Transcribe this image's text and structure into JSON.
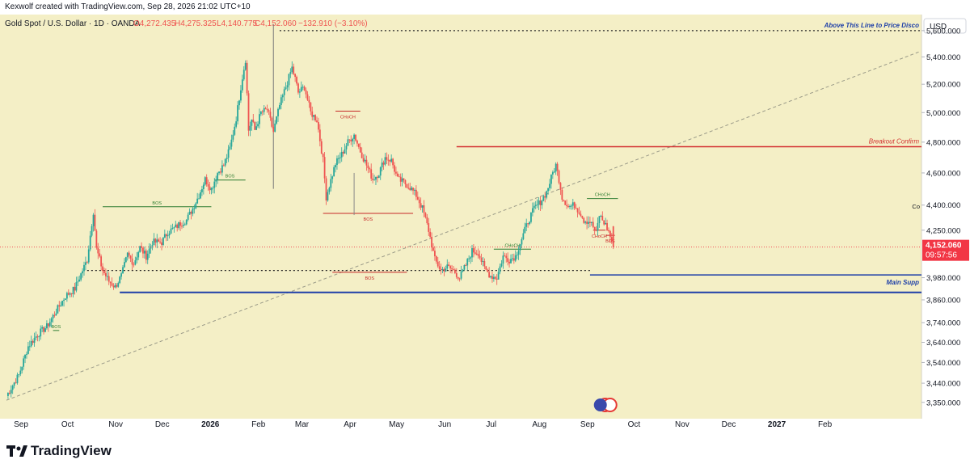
{
  "attribution": "Kexwolf created with TradingView.com, Sep 28, 2026 21:02 UTC+10",
  "brand": "TradingView",
  "colors": {
    "background": "#f4efc6",
    "up": "#26a69a",
    "down": "#ef5350",
    "bos_green": "#2e7d32",
    "choch_red": "#c62828",
    "support_blue": "#1e3fa8",
    "breakout_red": "#d32f2f",
    "trend_gray": "#9a9a88",
    "price_tag": "#f23645"
  },
  "chart_data": {
    "type": "candlestick",
    "symbol": "Gold Spot / U.S. Dollar · 1D · OANDA",
    "ohlc": {
      "O": "O4,272.435",
      "H": "H4,275.325",
      "L": "L4,140.775",
      "C": "C4,152.060",
      "change": "−132.910 (−3.10%)"
    },
    "currency": "USD",
    "scale": "log",
    "ylim": [
      3290,
      5700
    ],
    "y_ticks": [
      3350,
      3440,
      3540,
      3640,
      3740,
      3860,
      3980,
      4250,
      4400,
      4600,
      4800,
      5000,
      5200,
      5400,
      5600
    ],
    "y_tick_labels": [
      "3,350.000",
      "3,440.000",
      "3,540.000",
      "3,640.000",
      "3,740.000",
      "3,860.000",
      "3,980.000",
      "4,250.000",
      "4,400.000",
      "4,600.000",
      "4,800.000",
      "5,000.000",
      "5,200.000",
      "5,400.000",
      "5,600.000"
    ],
    "x_ticks": [
      {
        "label": "Sep",
        "pos": 0
      },
      {
        "label": "Oct",
        "pos": 30
      },
      {
        "label": "Nov",
        "pos": 61
      },
      {
        "label": "Dec",
        "pos": 91
      },
      {
        "label": "2026",
        "pos": 122,
        "bold": true
      },
      {
        "label": "Feb",
        "pos": 153
      },
      {
        "label": "Mar",
        "pos": 181
      },
      {
        "label": "Apr",
        "pos": 212
      },
      {
        "label": "May",
        "pos": 242
      },
      {
        "label": "Jun",
        "pos": 273
      },
      {
        "label": "Jul",
        "pos": 303
      },
      {
        "label": "Aug",
        "pos": 334
      },
      {
        "label": "Sep",
        "pos": 365
      },
      {
        "label": "Oct",
        "pos": 395
      },
      {
        "label": "Nov",
        "pos": 426
      },
      {
        "label": "Dec",
        "pos": 456
      },
      {
        "label": "2027",
        "pos": 487,
        "bold": true
      },
      {
        "label": "Feb",
        "pos": 518
      }
    ],
    "last_price": "4,152.060",
    "countdown": "09:57:56",
    "price_path": [
      [
        0,
        3380
      ],
      [
        8,
        3480
      ],
      [
        14,
        3620
      ],
      [
        20,
        3680
      ],
      [
        26,
        3720
      ],
      [
        32,
        3800
      ],
      [
        38,
        3880
      ],
      [
        44,
        3920
      ],
      [
        48,
        4000
      ],
      [
        52,
        4080
      ],
      [
        56,
        4360
      ],
      [
        58,
        4140
      ],
      [
        62,
        4020
      ],
      [
        66,
        3960
      ],
      [
        70,
        3930
      ],
      [
        74,
        3990
      ],
      [
        78,
        4110
      ],
      [
        82,
        4060
      ],
      [
        86,
        4150
      ],
      [
        90,
        4100
      ],
      [
        94,
        4180
      ],
      [
        100,
        4180
      ],
      [
        104,
        4240
      ],
      [
        108,
        4260
      ],
      [
        112,
        4290
      ],
      [
        116,
        4310
      ],
      [
        120,
        4380
      ],
      [
        124,
        4460
      ],
      [
        128,
        4560
      ],
      [
        132,
        4500
      ],
      [
        136,
        4600
      ],
      [
        140,
        4650
      ],
      [
        144,
        4760
      ],
      [
        148,
        4960
      ],
      [
        152,
        5250
      ],
      [
        154,
        5380
      ],
      [
        156,
        4880
      ],
      [
        158,
        4950
      ],
      [
        160,
        4880
      ],
      [
        164,
        5000
      ],
      [
        168,
        5020
      ],
      [
        172,
        4870
      ],
      [
        176,
        5050
      ],
      [
        180,
        5180
      ],
      [
        184,
        5320
      ],
      [
        186,
        5240
      ],
      [
        188,
        5140
      ],
      [
        192,
        5180
      ],
      [
        196,
        5000
      ],
      [
        200,
        4950
      ],
      [
        204,
        4680
      ],
      [
        206,
        4450
      ],
      [
        208,
        4520
      ],
      [
        212,
        4660
      ],
      [
        216,
        4720
      ],
      [
        220,
        4800
      ],
      [
        224,
        4850
      ],
      [
        228,
        4740
      ],
      [
        232,
        4650
      ],
      [
        236,
        4560
      ],
      [
        240,
        4600
      ],
      [
        244,
        4700
      ],
      [
        248,
        4680
      ],
      [
        252,
        4560
      ],
      [
        256,
        4540
      ],
      [
        260,
        4510
      ],
      [
        264,
        4460
      ],
      [
        268,
        4380
      ],
      [
        272,
        4250
      ],
      [
        276,
        4080
      ],
      [
        280,
        4020
      ],
      [
        284,
        4040
      ],
      [
        288,
        4020
      ],
      [
        292,
        3980
      ],
      [
        296,
        4050
      ],
      [
        300,
        4130
      ],
      [
        304,
        4120
      ],
      [
        308,
        4030
      ],
      [
        312,
        3990
      ],
      [
        316,
        3980
      ],
      [
        320,
        4100
      ],
      [
        324,
        4080
      ],
      [
        328,
        4100
      ],
      [
        332,
        4200
      ],
      [
        336,
        4300
      ],
      [
        340,
        4380
      ],
      [
        344,
        4420
      ],
      [
        348,
        4480
      ],
      [
        352,
        4600
      ],
      [
        354,
        4650
      ],
      [
        356,
        4560
      ],
      [
        358,
        4450
      ],
      [
        362,
        4390
      ],
      [
        366,
        4400
      ],
      [
        370,
        4350
      ],
      [
        372,
        4310
      ],
      [
        376,
        4300
      ],
      [
        378,
        4270
      ],
      [
        380,
        4230
      ],
      [
        382,
        4340
      ],
      [
        386,
        4280
      ],
      [
        388,
        4240
      ],
      [
        391,
        4160
      ]
    ],
    "annotations": {
      "above_line": "Above This Line to Price Disco",
      "breakout": "Breakout Confirm",
      "main_support": "Main Supp",
      "right_c": "Co",
      "bos": "BOS",
      "choch": "CHoCH"
    }
  }
}
